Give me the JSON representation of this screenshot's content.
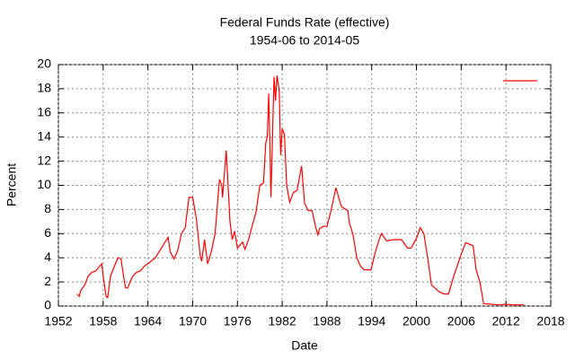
{
  "chart_data": {
    "type": "line",
    "title": "Federal Funds Rate (effective)",
    "subtitle": "1954-06 to 2014-05",
    "xlabel": "Date",
    "ylabel": "Percent",
    "xlim": [
      1952,
      2018
    ],
    "xticks": [
      1952,
      1958,
      1964,
      1970,
      1976,
      1982,
      1988,
      1994,
      2000,
      2006,
      2012,
      2018
    ],
    "ylim": [
      0,
      20
    ],
    "yticks": [
      0,
      2,
      4,
      6,
      8,
      10,
      12,
      14,
      16,
      18,
      20
    ],
    "grid": true,
    "legend": "upper right",
    "series": [
      {
        "color": "#ff0000",
        "x": [
          1954.5,
          1954.8,
          1955.0,
          1955.5,
          1956.0,
          1956.5,
          1957.0,
          1957.8,
          1958.0,
          1958.4,
          1958.6,
          1959.0,
          1959.5,
          1960.0,
          1960.4,
          1960.8,
          1961.0,
          1961.3,
          1961.6,
          1962.0,
          1962.5,
          1963.0,
          1963.5,
          1964.0,
          1965.0,
          1966.0,
          1966.7,
          1967.0,
          1967.5,
          1968.0,
          1968.5,
          1969.0,
          1969.5,
          1970.0,
          1970.5,
          1971.0,
          1971.2,
          1971.6,
          1972.0,
          1972.5,
          1973.0,
          1973.6,
          1973.9,
          1974.0,
          1974.5,
          1975.0,
          1975.3,
          1975.6,
          1976.0,
          1976.7,
          1977.0,
          1977.5,
          1978.0,
          1978.5,
          1979.0,
          1979.5,
          1979.8,
          1980.0,
          1980.2,
          1980.5,
          1980.9,
          1981.1,
          1981.3,
          1981.6,
          1981.8,
          1982.0,
          1982.3,
          1982.6,
          1983.0,
          1983.5,
          1984.0,
          1984.6,
          1985.0,
          1985.5,
          1986.0,
          1986.5,
          1986.8,
          1987.0,
          1987.5,
          1988.0,
          1988.5,
          1989.2,
          1989.8,
          1990.0,
          1990.8,
          1991.0,
          1991.5,
          1992.0,
          1992.5,
          1993.0,
          1993.9,
          1994.5,
          1995.0,
          1995.3,
          1996.0,
          1997.0,
          1998.0,
          1998.8,
          1999.3,
          2000.0,
          2000.5,
          2001.0,
          2001.5,
          2002.0,
          2003.0,
          2003.7,
          2004.3,
          2005.0,
          2006.0,
          2006.6,
          2007.6,
          2008.0,
          2008.5,
          2009.0,
          2010.0,
          2011.0,
          2012.0,
          2013.0,
          2014.4
        ],
        "values": [
          1.0,
          0.8,
          1.3,
          1.7,
          2.5,
          2.8,
          2.9,
          3.5,
          2.5,
          0.8,
          0.7,
          2.5,
          3.3,
          4.0,
          3.9,
          2.2,
          1.5,
          1.5,
          2.0,
          2.5,
          2.8,
          2.9,
          3.3,
          3.5,
          4.0,
          5.0,
          5.7,
          4.5,
          3.9,
          4.6,
          6.0,
          6.5,
          9.0,
          9.0,
          7.2,
          4.2,
          3.7,
          5.5,
          3.5,
          4.5,
          6.0,
          10.5,
          10.0,
          9.0,
          12.9,
          7.0,
          5.5,
          6.2,
          4.8,
          5.3,
          4.7,
          5.5,
          6.7,
          7.8,
          10.0,
          10.2,
          13.5,
          14.0,
          17.6,
          9.0,
          19.0,
          17.0,
          19.1,
          17.8,
          12.5,
          14.7,
          14.2,
          10.0,
          8.6,
          9.4,
          9.6,
          11.6,
          8.5,
          7.9,
          7.9,
          6.5,
          5.9,
          6.4,
          6.6,
          6.6,
          7.8,
          9.8,
          8.5,
          8.2,
          7.9,
          6.9,
          5.9,
          4.0,
          3.3,
          3.0,
          3.0,
          4.5,
          5.5,
          6.0,
          5.4,
          5.5,
          5.5,
          4.8,
          4.8,
          5.6,
          6.5,
          6.0,
          4.0,
          1.75,
          1.2,
          1.0,
          1.0,
          2.5,
          4.3,
          5.25,
          5.0,
          3.0,
          2.0,
          0.2,
          0.15,
          0.1,
          0.15,
          0.1,
          0.1
        ]
      }
    ]
  }
}
